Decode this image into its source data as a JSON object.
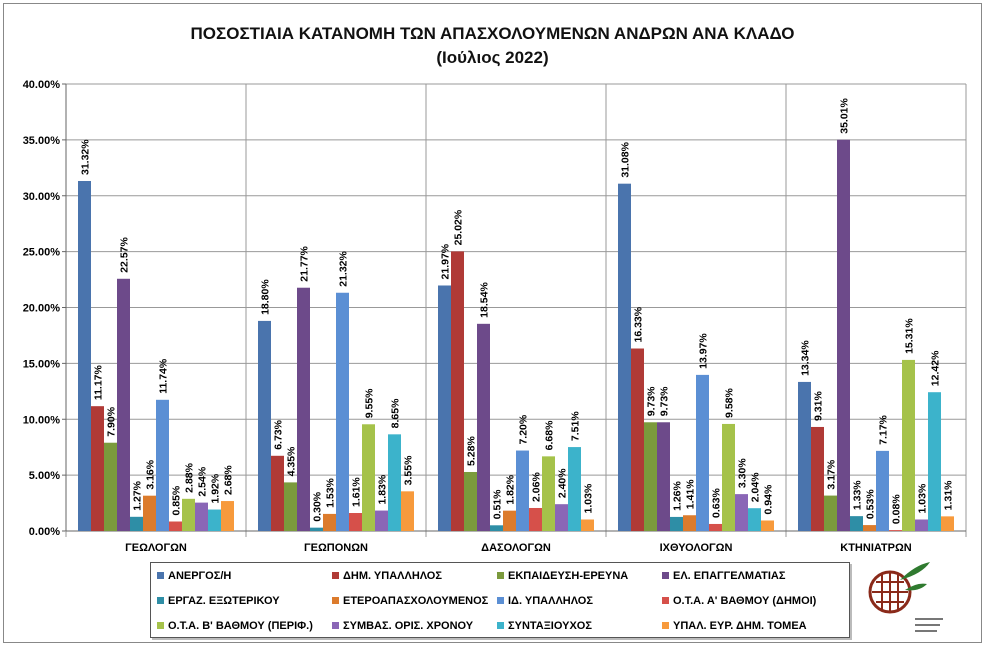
{
  "chart_data": {
    "type": "bar",
    "title": "ΠΟΣΟΣΤΙΑΙΑ ΚΑΤΑΝΟΜΗ ΤΩΝ ΑΠΑΣΧΟΛΟΥΜΕΝΩΝ ΑΝΔΡΩΝ ΑΝΑ ΚΛΑΔΟ",
    "subtitle": "(Ιούλιος 2022)",
    "categories": [
      "ΓΕΩΛΟΓΩΝ",
      "ΓΕΩΠΟΝΩΝ",
      "ΔΑΣΟΛΟΓΩΝ",
      "ΙΧΘΥΟΛΟΓΩΝ",
      "ΚΤΗΝΙΑΤΡΩΝ"
    ],
    "ylim": [
      0,
      40
    ],
    "yticks": [
      "0.00%",
      "5.00%",
      "10.00%",
      "15.00%",
      "20.00%",
      "25.00%",
      "30.00%",
      "35.00%",
      "40.00%"
    ],
    "grid": true,
    "legend_placement": "bottom",
    "series": [
      {
        "name": "ΑΝΕΡΓΟΣ/Η",
        "color": "#4a74ad",
        "values": [
          31.32,
          18.8,
          21.97,
          31.08,
          13.34
        ]
      },
      {
        "name": "ΔΗΜ. ΥΠΑΛΛΗΛΟΣ",
        "color": "#b03a36",
        "values": [
          11.17,
          6.73,
          25.02,
          16.33,
          9.31
        ]
      },
      {
        "name": "ΕΚΠΑΙΔΕΥΣΗ-ΕΡΕΥΝΑ",
        "color": "#7b9a3c",
        "values": [
          7.9,
          4.35,
          5.28,
          9.73,
          3.17
        ]
      },
      {
        "name": "ΕΛ. ΕΠΑΓΓΕΛΜΑΤΙΑΣ",
        "color": "#6d4a8a",
        "values": [
          22.57,
          21.77,
          18.54,
          9.73,
          35.01
        ]
      },
      {
        "name": "ΕΡΓΑΖ. ΕΞΩΤΕΡΙΚΟΥ",
        "color": "#2e8ea6",
        "values": [
          1.27,
          0.3,
          0.51,
          1.26,
          1.33
        ]
      },
      {
        "name": "ΕΤΕΡΟΑΠΑΣΧΟΛΟΥΜΕΝΟΣ",
        "color": "#dc7b2c",
        "values": [
          3.16,
          1.53,
          1.82,
          1.41,
          0.53
        ]
      },
      {
        "name": "ΙΔ. ΥΠΑΛΛΗΛΟΣ",
        "color": "#5b8fd4",
        "values": [
          11.74,
          21.32,
          7.2,
          13.97,
          7.17
        ]
      },
      {
        "name": "Ο.Τ.Α. Α' ΒΑΘΜΟΥ (ΔΗΜΟΙ)",
        "color": "#d6504a",
        "values": [
          0.85,
          1.61,
          2.06,
          0.63,
          0.08
        ]
      },
      {
        "name": "Ο.Τ.Α. Β' ΒΑΘΜΟΥ (ΠΕΡΙΦ.)",
        "color": "#a5c24a",
        "values": [
          2.88,
          9.55,
          6.68,
          9.58,
          15.31
        ]
      },
      {
        "name": "ΣΥΜΒΑΣ. ΟΡΙΣ. ΧΡΟΝΟΥ",
        "color": "#8a66b6",
        "values": [
          2.54,
          1.83,
          2.4,
          3.3,
          1.03
        ]
      },
      {
        "name": "ΣΥΝΤΑΞΙΟΥΧΟΣ",
        "color": "#3cb3cb",
        "values": [
          1.92,
          8.65,
          7.51,
          2.04,
          12.42
        ]
      },
      {
        "name": "ΥΠΑΛ. ΕΥΡ. ΔΗΜ. ΤΟΜΕΑ",
        "color": "#f79a3c",
        "values": [
          2.68,
          3.55,
          1.03,
          0.94,
          1.31
        ]
      }
    ]
  }
}
